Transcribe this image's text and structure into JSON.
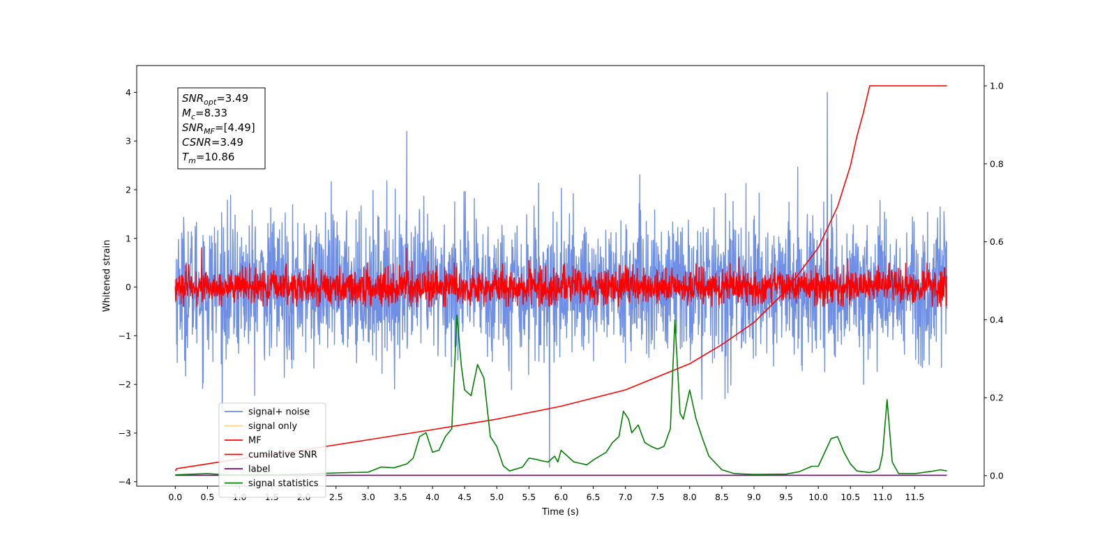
{
  "chart_data": {
    "type": "line",
    "xlabel": "Time (s)",
    "ylabel": "Whitened strain",
    "ylabel_right": "",
    "xlim": [
      -0.6,
      12.58
    ],
    "ylim": [
      -4.09,
      4.55
    ],
    "ylim_right": [
      -0.027,
      1.052
    ],
    "x_ticks": [
      0.0,
      0.5,
      1.0,
      1.5,
      2.0,
      2.5,
      3.0,
      3.5,
      4.0,
      4.5,
      5.0,
      5.5,
      6.0,
      6.5,
      7.0,
      7.5,
      8.0,
      8.5,
      9.0,
      9.5,
      10.0,
      10.5,
      11.0,
      11.5
    ],
    "x_tick_labels": [
      "0.0",
      "0.5",
      "1.0",
      "1.5",
      "2.0",
      "2.5",
      "3.0",
      "3.5",
      "4.0",
      "4.5",
      "5.0",
      "5.5",
      "6.0",
      "6.5",
      "7.0",
      "7.5",
      "8.0",
      "8.5",
      "9.0",
      "9.5",
      "10.0",
      "10.5",
      "11.0",
      "11.5"
    ],
    "y_ticks": [
      4,
      3,
      2,
      1,
      0,
      -1,
      -2,
      -3,
      -4
    ],
    "y_tick_labels": [
      "4",
      "3",
      "2",
      "1",
      "0",
      "−1",
      "−2",
      "−3",
      "−4"
    ],
    "y_ticks_right": [
      1.0,
      0.8,
      0.6,
      0.4,
      0.2,
      0.0
    ],
    "y_tick_labels_right": [
      "1.0",
      "0.8",
      "0.6",
      "0.4",
      "0.2",
      "0.0"
    ],
    "grid": false,
    "legend_position": "lower-left",
    "series": [
      {
        "name": "signal+ noise",
        "color": "#6f8fe6",
        "axis": "left",
        "kind": "noise",
        "x_range": [
          0.0,
          12.0
        ],
        "center": 0.0,
        "typical_amplitude": 1.6,
        "max_peak": 4.0,
        "min_trough": -3.7
      },
      {
        "name": "signal only",
        "color": "#ffd27f",
        "axis": "left",
        "kind": "hidden"
      },
      {
        "name": "MF",
        "color": "#ff0000",
        "axis": "left",
        "kind": "noise",
        "x_range": [
          0.0,
          12.0
        ],
        "center": 0.0,
        "typical_amplitude": 0.4,
        "max_peak": 1.0,
        "min_trough": -0.4
      },
      {
        "name": "cumilative SNR",
        "color": "#ff0000",
        "axis": "right",
        "kind": "curve",
        "x": [
          0.0,
          0.02,
          0.5,
          1.0,
          2.0,
          3.0,
          4.0,
          5.0,
          6.0,
          7.0,
          8.0,
          8.5,
          9.0,
          9.5,
          10.0,
          10.3,
          10.5,
          10.6,
          10.7,
          10.8,
          10.86,
          11.0,
          11.5,
          11.5,
          12.0
        ],
        "y": [
          0.012,
          0.018,
          0.03,
          0.043,
          0.066,
          0.092,
          0.118,
          0.145,
          0.178,
          0.22,
          0.287,
          0.336,
          0.393,
          0.475,
          0.585,
          0.69,
          0.795,
          0.87,
          0.93,
          1.0,
          1.0,
          1.0,
          1.0,
          1.0,
          1.0
        ]
      },
      {
        "name": "label",
        "color": "#800080",
        "axis": "right",
        "kind": "curve",
        "x": [
          0.0,
          12.0
        ],
        "y": [
          0.001,
          0.001
        ]
      },
      {
        "name": "signal statistics",
        "color": "#008000",
        "axis": "right",
        "kind": "curve",
        "x": [
          0.0,
          0.3,
          0.5,
          0.7,
          1.0,
          1.5,
          2.0,
          2.5,
          3.0,
          3.2,
          3.4,
          3.6,
          3.7,
          3.8,
          3.9,
          4.0,
          4.1,
          4.2,
          4.3,
          4.38,
          4.45,
          4.5,
          4.6,
          4.7,
          4.8,
          4.9,
          5.0,
          5.1,
          5.2,
          5.4,
          5.5,
          5.6,
          5.7,
          5.8,
          5.9,
          5.95,
          6.0,
          6.1,
          6.2,
          6.4,
          6.5,
          6.6,
          6.7,
          6.8,
          6.9,
          6.97,
          7.05,
          7.1,
          7.2,
          7.3,
          7.4,
          7.5,
          7.6,
          7.7,
          7.77,
          7.85,
          7.9,
          8.0,
          8.1,
          8.2,
          8.3,
          8.5,
          8.7,
          9.0,
          9.5,
          9.7,
          9.9,
          10.0,
          10.2,
          10.3,
          10.4,
          10.5,
          10.6,
          10.7,
          10.8,
          10.9,
          10.95,
          11.0,
          11.07,
          11.15,
          11.25,
          11.5,
          11.8,
          11.9,
          12.0
        ],
        "y": [
          0.002,
          0.004,
          0.005,
          0.003,
          0.002,
          0.002,
          0.004,
          0.007,
          0.009,
          0.022,
          0.02,
          0.03,
          0.045,
          0.1,
          0.11,
          0.06,
          0.065,
          0.1,
          0.12,
          0.412,
          0.28,
          0.22,
          0.205,
          0.285,
          0.25,
          0.1,
          0.075,
          0.025,
          0.012,
          0.022,
          0.045,
          0.042,
          0.038,
          0.035,
          0.05,
          0.035,
          0.065,
          0.05,
          0.035,
          0.028,
          0.04,
          0.05,
          0.06,
          0.085,
          0.1,
          0.165,
          0.145,
          0.11,
          0.13,
          0.085,
          0.075,
          0.068,
          0.075,
          0.12,
          0.4,
          0.16,
          0.145,
          0.22,
          0.145,
          0.095,
          0.05,
          0.015,
          0.005,
          0.003,
          0.004,
          0.01,
          0.024,
          0.024,
          0.095,
          0.1,
          0.06,
          0.03,
          0.012,
          0.01,
          0.008,
          0.012,
          0.018,
          0.055,
          0.195,
          0.035,
          0.005,
          0.005,
          0.012,
          0.015,
          0.012
        ]
      }
    ],
    "annotations": [
      {
        "base": "SNR",
        "sub": "opt",
        "value": "=3.49"
      },
      {
        "base": "M",
        "sub": "c",
        "value": "=8.33"
      },
      {
        "base": "SNR",
        "sub": "MF",
        "value": "=[4.49]"
      },
      {
        "base": "CSNR",
        "sub": "",
        "value": "=3.49"
      },
      {
        "base": "T",
        "sub": "m",
        "value": "=10.86"
      }
    ]
  }
}
